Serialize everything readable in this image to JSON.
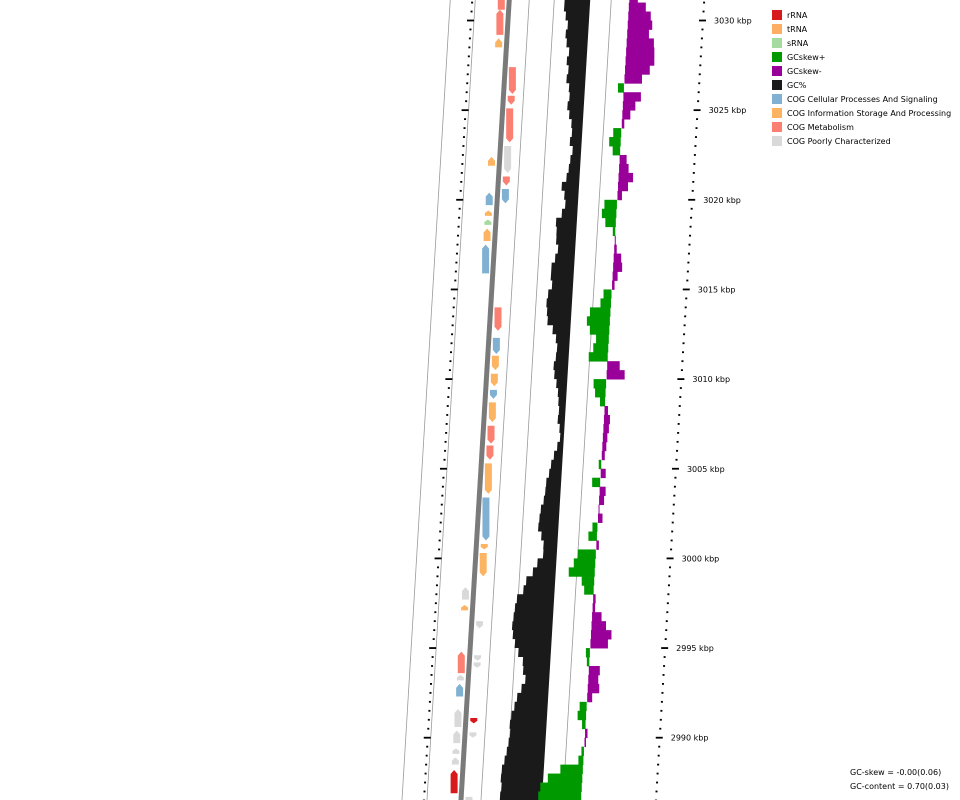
{
  "legend": [
    {
      "label": "rRNA",
      "color": "#d7191c"
    },
    {
      "label": "tRNA",
      "color": "#fdae61"
    },
    {
      "label": "sRNA",
      "color": "#a6dba0"
    },
    {
      "label": "GCskew+",
      "color": "#009900"
    },
    {
      "label": "GCskew-",
      "color": "#990099"
    },
    {
      "label": "GC%",
      "color": "#1a1a1a"
    },
    {
      "label": "COG Cellular Processes And Signaling",
      "color": "#80b1d3"
    },
    {
      "label": "COG Information Storage And Processing",
      "color": "#fdb462"
    },
    {
      "label": "COG Metabolism",
      "color": "#fb8072"
    },
    {
      "label": "COG Poorly Characterized",
      "color": "#d9d9d9"
    }
  ],
  "stats": {
    "gc_skew": "GC-skew = -0.00(0.06)",
    "gc_content": "GC-content = 0.70(0.03)"
  },
  "scale": {
    "labels": [
      "3030 kbp",
      "3025 kbp",
      "3020 kbp",
      "3015 kbp",
      "3010 kbp",
      "3005 kbp",
      "3000 kbp",
      "2995 kbp",
      "2990 kbp"
    ]
  },
  "features": {
    "forward": [
      {
        "start": 3031.8,
        "end": 3030.6,
        "cog": "metabolism"
      },
      {
        "start": 3030.6,
        "end": 3029.2,
        "cog": "metabolism"
      },
      {
        "start": 3029.0,
        "end": 3028.5,
        "cog": "information"
      },
      {
        "start": 3022.4,
        "end": 3021.9,
        "cog": "information"
      },
      {
        "start": 3020.4,
        "end": 3019.7,
        "cog": "cellular"
      },
      {
        "start": 3019.4,
        "end": 3019.1,
        "cog": "information"
      },
      {
        "start": 3018.9,
        "end": 3018.6,
        "cog": "sRNA"
      },
      {
        "start": 3018.4,
        "end": 3017.7,
        "cog": "information"
      },
      {
        "start": 3017.5,
        "end": 3015.9,
        "cog": "cellular"
      },
      {
        "start": 2998.4,
        "end": 2997.7,
        "cog": "poorly"
      },
      {
        "start": 2997.4,
        "end": 2997.1,
        "cog": "information"
      },
      {
        "start": 2994.8,
        "end": 2993.6,
        "cog": "metabolism"
      },
      {
        "start": 2993.5,
        "end": 2993.2,
        "cog": "poorly"
      },
      {
        "start": 2993.0,
        "end": 2992.3,
        "cog": "cellular"
      },
      {
        "start": 2991.6,
        "end": 2990.6,
        "cog": "poorly"
      },
      {
        "start": 2990.4,
        "end": 2989.7,
        "cog": "poorly"
      },
      {
        "start": 2989.4,
        "end": 2989.1,
        "cog": "poorly"
      },
      {
        "start": 2988.9,
        "end": 2988.5,
        "cog": "poorly"
      },
      {
        "start": 2988.2,
        "end": 2986.9,
        "cog": "rRNA"
      }
    ],
    "reverse": [
      {
        "start": 3027.4,
        "end": 3025.9,
        "cog": "metabolism"
      },
      {
        "start": 3025.8,
        "end": 3025.3,
        "cog": "metabolism"
      },
      {
        "start": 3025.1,
        "end": 3023.2,
        "cog": "metabolism"
      },
      {
        "start": 3023.0,
        "end": 3021.5,
        "cog": "poorly"
      },
      {
        "start": 3021.3,
        "end": 3020.8,
        "cog": "metabolism"
      },
      {
        "start": 3020.6,
        "end": 3019.8,
        "cog": "cellular"
      },
      {
        "start": 3014.0,
        "end": 3012.7,
        "cog": "metabolism"
      },
      {
        "start": 3012.3,
        "end": 3011.4,
        "cog": "cellular"
      },
      {
        "start": 3011.3,
        "end": 3010.5,
        "cog": "information"
      },
      {
        "start": 3010.3,
        "end": 3009.6,
        "cog": "information"
      },
      {
        "start": 3009.4,
        "end": 3008.9,
        "cog": "cellular"
      },
      {
        "start": 3008.7,
        "end": 3007.6,
        "cog": "information"
      },
      {
        "start": 3007.4,
        "end": 3006.4,
        "cog": "metabolism"
      },
      {
        "start": 3006.3,
        "end": 3005.5,
        "cog": "metabolism"
      },
      {
        "start": 3005.3,
        "end": 3003.6,
        "cog": "information"
      },
      {
        "start": 3003.4,
        "end": 3001.0,
        "cog": "cellular"
      },
      {
        "start": 3000.8,
        "end": 3000.5,
        "cog": "information"
      },
      {
        "start": 3000.3,
        "end": 2999.0,
        "cog": "information"
      },
      {
        "start": 2996.5,
        "end": 2996.1,
        "cog": "poorly"
      },
      {
        "start": 2994.6,
        "end": 2994.3,
        "cog": "poorly"
      },
      {
        "start": 2994.2,
        "end": 2993.9,
        "cog": "poorly"
      },
      {
        "start": 2991.1,
        "end": 2990.8,
        "cog": "rRNA"
      },
      {
        "start": 2990.3,
        "end": 2990.0,
        "cog": "poorly"
      },
      {
        "start": 2986.7,
        "end": 2986.3,
        "cog": "poorly"
      },
      {
        "start": 2986.2,
        "end": 2985.9,
        "cog": "poorly"
      }
    ]
  },
  "gc_content": [
    [
      3031.5,
      0.722
    ],
    [
      3031.0,
      0.722
    ],
    [
      3030.5,
      0.712
    ],
    [
      3030.0,
      0.7
    ],
    [
      3029.5,
      0.707
    ],
    [
      3029.0,
      0.7
    ],
    [
      3028.5,
      0.686
    ],
    [
      3028.0,
      0.694
    ],
    [
      3027.5,
      0.684
    ],
    [
      3027.0,
      0.69
    ],
    [
      3026.5,
      0.676
    ],
    [
      3026.0,
      0.671
    ],
    [
      3025.5,
      0.678
    ],
    [
      3025.0,
      0.667
    ],
    [
      3024.5,
      0.654
    ],
    [
      3024.0,
      0.649
    ],
    [
      3023.5,
      0.656
    ],
    [
      3023.0,
      0.641
    ],
    [
      3022.5,
      0.649
    ],
    [
      3022.0,
      0.654
    ],
    [
      3021.5,
      0.662
    ],
    [
      3021.0,
      0.682
    ],
    [
      3020.5,
      0.667
    ],
    [
      3020.0,
      0.66
    ],
    [
      3019.5,
      0.674
    ],
    [
      3019.0,
      0.699
    ],
    [
      3018.5,
      0.694
    ],
    [
      3018.0,
      0.693
    ],
    [
      3017.5,
      0.682
    ],
    [
      3017.0,
      0.693
    ],
    [
      3016.5,
      0.708
    ],
    [
      3016.0,
      0.708
    ],
    [
      3015.5,
      0.7
    ],
    [
      3015.0,
      0.716
    ],
    [
      3014.5,
      0.721
    ],
    [
      3014.0,
      0.716
    ],
    [
      3013.5,
      0.711
    ],
    [
      3013.0,
      0.684
    ],
    [
      3012.5,
      0.666
    ],
    [
      3012.0,
      0.658
    ],
    [
      3011.5,
      0.661
    ],
    [
      3011.0,
      0.669
    ],
    [
      3010.5,
      0.663
    ],
    [
      3010.0,
      0.651
    ],
    [
      3009.5,
      0.641
    ],
    [
      3009.0,
      0.636
    ],
    [
      3008.5,
      0.631
    ],
    [
      3008.0,
      0.634
    ],
    [
      3007.5,
      0.623
    ],
    [
      3007.0,
      0.618
    ],
    [
      3006.5,
      0.629
    ],
    [
      3006.0,
      0.642
    ],
    [
      3005.5,
      0.653
    ],
    [
      3005.0,
      0.66
    ],
    [
      3004.5,
      0.671
    ],
    [
      3004.0,
      0.673
    ],
    [
      3003.5,
      0.678
    ],
    [
      3003.0,
      0.689
    ],
    [
      3002.5,
      0.693
    ],
    [
      3002.0,
      0.696
    ],
    [
      3001.5,
      0.679
    ],
    [
      3001.0,
      0.666
    ],
    [
      3000.5,
      0.665
    ],
    [
      3000.0,
      0.69
    ],
    [
      2999.5,
      0.709
    ],
    [
      2999.0,
      0.738
    ],
    [
      2998.5,
      0.749
    ],
    [
      2998.0,
      0.777
    ],
    [
      2997.5,
      0.784
    ],
    [
      2997.0,
      0.788
    ],
    [
      2996.5,
      0.792
    ],
    [
      2996.0,
      0.786
    ],
    [
      2995.5,
      0.774
    ],
    [
      2995.0,
      0.755
    ],
    [
      2994.5,
      0.731
    ],
    [
      2994.0,
      0.727
    ],
    [
      2993.5,
      0.714
    ],
    [
      2993.0,
      0.73
    ],
    [
      2992.5,
      0.748
    ],
    [
      2992.0,
      0.758
    ],
    [
      2991.5,
      0.77
    ],
    [
      2991.0,
      0.775
    ],
    [
      2990.5,
      0.771
    ],
    [
      2990.0,
      0.776
    ],
    [
      2989.5,
      0.782
    ],
    [
      2989.0,
      0.79
    ],
    [
      2988.5,
      0.8
    ],
    [
      2988.0,
      0.802
    ],
    [
      2987.5,
      0.797
    ],
    [
      2987.0,
      0.801
    ],
    [
      2986.5,
      0.804
    ],
    [
      2986.0,
      0.8
    ],
    [
      2985.5,
      0.798
    ]
  ],
  "gc_skew": [
    [
      3031.5,
      -0.034
    ],
    [
      3031.0,
      -0.068
    ],
    [
      3030.5,
      -0.09
    ],
    [
      3030.0,
      -0.098
    ],
    [
      3029.5,
      -0.087
    ],
    [
      3029.0,
      -0.109
    ],
    [
      3028.5,
      -0.113
    ],
    [
      3028.0,
      -0.115
    ],
    [
      3027.5,
      -0.099
    ],
    [
      3027.0,
      -0.07
    ],
    [
      3026.5,
      0.024
    ],
    [
      3026.0,
      -0.07
    ],
    [
      3025.5,
      -0.05
    ],
    [
      3025.0,
      -0.032
    ],
    [
      3024.5,
      -0.01
    ],
    [
      3024.0,
      0.032
    ],
    [
      3023.5,
      0.046
    ],
    [
      3023.0,
      0.03
    ],
    [
      3022.5,
      -0.028
    ],
    [
      3022.0,
      -0.038
    ],
    [
      3021.5,
      -0.058
    ],
    [
      3021.0,
      -0.04
    ],
    [
      3020.5,
      -0.018
    ],
    [
      3020.0,
      0.05
    ],
    [
      3019.5,
      0.058
    ],
    [
      3019.0,
      0.042
    ],
    [
      3018.5,
      0.01
    ],
    [
      3018.0,
      -0.004
    ],
    [
      3017.5,
      -0.01
    ],
    [
      3017.0,
      -0.03
    ],
    [
      3016.5,
      -0.036
    ],
    [
      3016.0,
      -0.02
    ],
    [
      3015.5,
      -0.01
    ],
    [
      3015.0,
      0.032
    ],
    [
      3014.5,
      0.042
    ],
    [
      3014.0,
      0.082
    ],
    [
      3013.5,
      0.092
    ],
    [
      3013.0,
      0.078
    ],
    [
      3012.5,
      0.051
    ],
    [
      3012.0,
      0.06
    ],
    [
      3011.5,
      0.076
    ],
    [
      3011.0,
      -0.05
    ],
    [
      3010.5,
      -0.072
    ],
    [
      3010.0,
      0.05
    ],
    [
      3009.5,
      0.042
    ],
    [
      3009.0,
      0.02
    ],
    [
      3008.5,
      -0.014
    ],
    [
      3008.0,
      -0.024
    ],
    [
      3007.5,
      -0.022
    ],
    [
      3007.0,
      -0.018
    ],
    [
      3006.5,
      -0.016
    ],
    [
      3006.0,
      -0.012
    ],
    [
      3005.5,
      0.01
    ],
    [
      3005.0,
      -0.02
    ],
    [
      3004.5,
      0.032
    ],
    [
      3004.0,
      -0.024
    ],
    [
      3003.5,
      -0.02
    ],
    [
      3003.0,
      -0.004
    ],
    [
      3002.5,
      -0.018
    ],
    [
      3002.0,
      0.02
    ],
    [
      3001.5,
      0.034
    ],
    [
      3001.0,
      -0.01
    ],
    [
      3000.5,
      0.072
    ],
    [
      3000.0,
      0.086
    ],
    [
      2999.5,
      0.104
    ],
    [
      2999.0,
      0.05
    ],
    [
      2998.5,
      0.038
    ],
    [
      2998.0,
      -0.01
    ],
    [
      2997.5,
      -0.01
    ],
    [
      2997.0,
      -0.038
    ],
    [
      2996.5,
      -0.058
    ],
    [
      2996.0,
      -0.082
    ],
    [
      2995.5,
      -0.07
    ],
    [
      2995.0,
      0.016
    ],
    [
      2994.5,
      0.01
    ],
    [
      2994.0,
      -0.044
    ],
    [
      2993.5,
      -0.04
    ],
    [
      2993.0,
      -0.046
    ],
    [
      2992.5,
      -0.02
    ],
    [
      2992.0,
      0.028
    ],
    [
      2991.5,
      0.034
    ],
    [
      2991.0,
      0.014
    ],
    [
      2990.5,
      -0.01
    ],
    [
      2990.0,
      -0.006
    ],
    [
      2989.5,
      0.01
    ],
    [
      2989.0,
      0.02
    ],
    [
      2988.5,
      0.09
    ],
    [
      2988.0,
      0.138
    ],
    [
      2987.5,
      0.166
    ],
    [
      2987.0,
      0.172
    ],
    [
      2986.5,
      0.12
    ],
    [
      2986.0,
      -0.044
    ],
    [
      2985.5,
      -0.05
    ]
  ]
}
